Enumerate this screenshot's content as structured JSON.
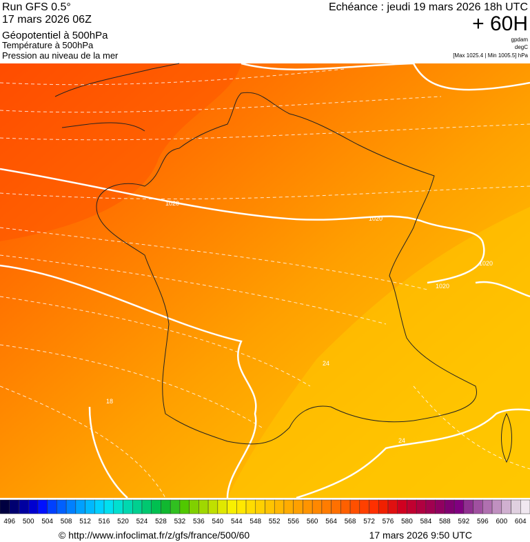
{
  "header": {
    "run": "Run GFS 0.5°",
    "run_date": "17 mars 2026 06Z",
    "line1": "Géopotentiel à 500hPa",
    "line2": "Température à 500hPa",
    "line3": "Pression au niveau de la mer",
    "echeance": "Echéance : jeudi 19 mars 2026 18h UTC",
    "lead": "+ 60H",
    "unit1": "gpdam",
    "unit2": "degC",
    "pressure_range": "[Max 1025.4 | Min 1005.5] hPa"
  },
  "map": {
    "contour_labels": [
      "1020",
      "1020",
      "1020",
      "1020",
      "24",
      "24",
      "18"
    ]
  },
  "legend": {
    "labels": [
      496,
      500,
      504,
      508,
      512,
      516,
      520,
      524,
      528,
      532,
      536,
      540,
      544,
      548,
      552,
      556,
      560,
      564,
      568,
      572,
      576,
      580,
      584,
      588,
      592,
      596,
      600,
      604
    ],
    "colors": [
      "#000040",
      "#000070",
      "#0000a0",
      "#0000d0",
      "#0010ff",
      "#0040ff",
      "#0060ff",
      "#0080ff",
      "#00a0ff",
      "#00b8ff",
      "#00d0ff",
      "#00e0f0",
      "#00e0d0",
      "#00d8b0",
      "#00d090",
      "#00c870",
      "#00c050",
      "#10b830",
      "#30c020",
      "#50c800",
      "#80d000",
      "#a0d800",
      "#c0e000",
      "#e0e800",
      "#f8f000",
      "#ffe800",
      "#ffdc00",
      "#ffd000",
      "#ffc400",
      "#ffb800",
      "#ffac00",
      "#ffa000",
      "#ff9400",
      "#ff8800",
      "#ff7c00",
      "#ff7000",
      "#ff6000",
      "#ff5000",
      "#ff4000",
      "#ff3000",
      "#f02000",
      "#e01010",
      "#d00020",
      "#c00030",
      "#b00040",
      "#a00050",
      "#900060",
      "#800070",
      "#800080",
      "#903090",
      "#a050a0",
      "#b070b0",
      "#c090c0",
      "#d0b0d0",
      "#e0d0e0",
      "#f0e8f0"
    ]
  },
  "footer": {
    "url": "© http://www.infoclimat.fr/z/gfs/france/500/60",
    "time": "17 mars 2026  9:50 UTC"
  }
}
